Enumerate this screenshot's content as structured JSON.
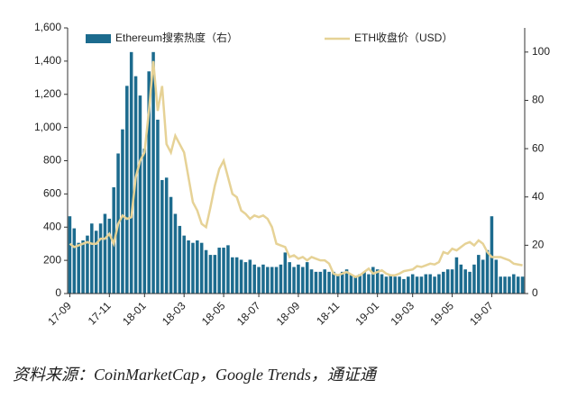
{
  "chart_data": {
    "type": "bar+line",
    "source": "资料来源：CoinMarketCap，Google Trends，通证通",
    "categories": [
      "17-09",
      null,
      null,
      null,
      null,
      null,
      null,
      null,
      null,
      "17-11",
      null,
      null,
      null,
      null,
      null,
      null,
      null,
      "18-01",
      null,
      null,
      null,
      null,
      null,
      null,
      null,
      null,
      "18-03",
      null,
      null,
      null,
      null,
      null,
      null,
      null,
      null,
      "18-05",
      null,
      null,
      null,
      null,
      null,
      null,
      null,
      "18-07",
      null,
      null,
      null,
      null,
      null,
      null,
      null,
      null,
      "18-09",
      null,
      null,
      null,
      null,
      null,
      null,
      null,
      null,
      "18-11",
      null,
      null,
      null,
      null,
      null,
      null,
      null,
      null,
      "19-01",
      null,
      null,
      null,
      null,
      null,
      null,
      null,
      "19-03",
      null,
      null,
      null,
      null,
      null,
      null,
      null,
      null,
      "19-05",
      null,
      null,
      null,
      null,
      null,
      null,
      null,
      null,
      "19-07",
      null,
      null,
      null,
      null,
      null,
      null,
      null
    ],
    "series": [
      {
        "name": "Ethereum搜索热度（右）",
        "kind": "bar",
        "axis": "y2",
        "color": "#1c6b8e",
        "values": [
          32,
          27,
          21,
          22,
          24,
          29,
          26,
          29,
          33,
          31,
          44,
          58,
          68,
          86,
          100,
          90,
          82,
          60,
          92,
          100,
          72,
          47,
          48,
          40,
          33,
          28,
          24,
          22,
          21,
          22,
          21,
          18,
          16,
          16,
          19,
          19,
          20,
          15,
          15,
          14,
          13,
          14,
          12,
          11,
          12,
          11,
          11,
          11,
          12,
          17,
          13,
          11,
          12,
          11,
          13,
          10,
          9,
          9,
          10,
          9,
          9,
          8,
          9,
          10,
          8,
          7,
          8,
          9,
          8,
          11,
          10,
          8,
          7,
          8,
          7,
          7,
          6,
          7,
          8,
          7,
          7,
          8,
          8,
          7,
          8,
          9,
          10,
          10,
          15,
          12,
          10,
          9,
          12,
          16,
          14,
          18,
          32,
          14,
          7,
          7,
          7,
          8,
          7,
          7
        ]
      },
      {
        "name": "ETH收盘价（USD）",
        "kind": "line",
        "color": "#e6d296",
        "values": [
          300,
          280,
          290,
          300,
          310,
          300,
          300,
          330,
          330,
          360,
          300,
          420,
          470,
          450,
          460,
          700,
          800,
          850,
          1100,
          1400,
          1100,
          1250,
          900,
          850,
          950,
          900,
          850,
          700,
          550,
          500,
          420,
          400,
          520,
          650,
          750,
          800,
          700,
          600,
          580,
          500,
          480,
          450,
          470,
          460,
          470,
          450,
          400,
          300,
          290,
          280,
          220,
          230,
          210,
          220,
          200,
          220,
          210,
          200,
          200,
          180,
          120,
          110,
          120,
          130,
          115,
          100,
          110,
          130,
          150,
          120,
          130,
          140,
          120,
          110,
          110,
          120,
          135,
          140,
          145,
          165,
          160,
          170,
          180,
          175,
          190,
          250,
          240,
          270,
          260,
          280,
          300,
          310,
          290,
          320,
          300,
          250,
          220,
          220,
          220,
          210,
          200,
          180,
          175,
          170
        ]
      }
    ],
    "ylim": [
      0,
      1600
    ],
    "yticks": [
      0,
      200,
      400,
      600,
      800,
      {
        "value": 1000,
        "label": "1,000"
      },
      {
        "value": 1200,
        "label": "1,200"
      },
      {
        "value": 1400,
        "label": "1,400"
      },
      {
        "value": 1600,
        "label": "1,600"
      }
    ],
    "y2lim": [
      0,
      110
    ],
    "y2ticks": [
      0,
      20,
      40,
      60,
      80,
      100
    ]
  }
}
